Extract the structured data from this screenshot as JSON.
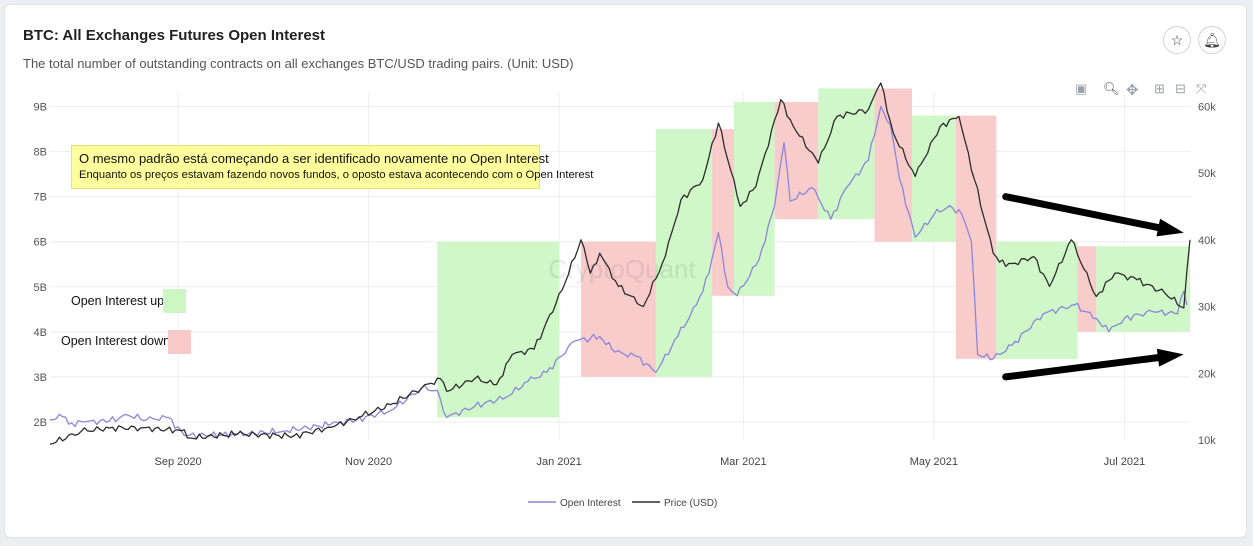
{
  "header": {
    "title": "BTC: All Exchanges Futures Open Interest",
    "subtitle": "The total number of outstanding contracts on all exchanges BTC/USD trading pairs. (Unit: USD)"
  },
  "icons": {
    "star": "star-icon",
    "bell": "bell-icon",
    "camera": "camera-icon",
    "zoom": "zoom-icon",
    "pan": "pan-icon",
    "plus": "plus-icon",
    "minus": "minus-icon",
    "reset": "reset-icon"
  },
  "annotation": {
    "line1": "O mesmo padrão está começando a ser identificado novamente no Open Interest",
    "line2": "Enquanto os preços estavam fazendo novos fundos, o oposto estava acontecendo com o Open Interest"
  },
  "key": {
    "up_label": "Open Interest up",
    "down_label": "Open Interest down",
    "up_color": "#ccf7c4",
    "down_color": "#f9c9c9"
  },
  "watermark": "CryptoQuant",
  "chart_data": {
    "type": "line",
    "x_start": "2020-07-22",
    "x_end": "2021-07-22",
    "xticks": [
      {
        "label": "Sep 2020",
        "date": "2020-09-01"
      },
      {
        "label": "Nov 2020",
        "date": "2020-11-01"
      },
      {
        "label": "Jan 2021",
        "date": "2021-01-01"
      },
      {
        "label": "Mar 2021",
        "date": "2021-03-01"
      },
      {
        "label": "May 2021",
        "date": "2021-05-01"
      },
      {
        "label": "Jul 2021",
        "date": "2021-07-01"
      }
    ],
    "y_left": {
      "ticks": [
        "2B",
        "3B",
        "4B",
        "5B",
        "6B",
        "7B",
        "8B",
        "9B"
      ],
      "values": [
        2,
        3,
        4,
        5,
        6,
        7,
        8,
        9
      ],
      "range": [
        1.6,
        9.3
      ]
    },
    "y_right": {
      "ticks": [
        "10k",
        "20k",
        "30k",
        "40k",
        "50k",
        "60k"
      ],
      "values": [
        10,
        20,
        30,
        40,
        50,
        60
      ],
      "range": [
        10,
        62
      ]
    },
    "legend": [
      {
        "name": "Open Interest",
        "color": "#8b86d9"
      },
      {
        "name": "Price (USD)",
        "color": "#2d2d2d"
      }
    ],
    "series": [
      {
        "name": "Open Interest",
        "color": "#8b86d9",
        "points": [
          [
            "2020-07-22",
            2.05
          ],
          [
            "2020-07-26",
            2.12
          ],
          [
            "2020-07-28",
            1.95
          ],
          [
            "2020-08-02",
            2.0
          ],
          [
            "2020-08-10",
            2.02
          ],
          [
            "2020-08-16",
            2.15
          ],
          [
            "2020-08-22",
            2.05
          ],
          [
            "2020-08-29",
            2.1
          ],
          [
            "2020-09-03",
            1.7
          ],
          [
            "2020-09-20",
            1.72
          ],
          [
            "2020-10-05",
            1.8
          ],
          [
            "2020-10-20",
            1.95
          ],
          [
            "2020-10-28",
            2.05
          ],
          [
            "2020-11-08",
            2.25
          ],
          [
            "2020-11-18",
            2.75
          ],
          [
            "2020-11-23",
            2.7
          ],
          [
            "2020-11-26",
            2.1
          ],
          [
            "2020-12-05",
            2.35
          ],
          [
            "2020-12-15",
            2.55
          ],
          [
            "2020-12-22",
            2.9
          ],
          [
            "2020-12-28",
            3.1
          ],
          [
            "2021-01-06",
            3.8
          ],
          [
            "2021-01-11",
            3.85
          ],
          [
            "2021-01-14",
            3.9
          ],
          [
            "2021-01-19",
            3.55
          ],
          [
            "2021-01-26",
            3.45
          ],
          [
            "2021-02-01",
            3.1
          ],
          [
            "2021-02-08",
            3.9
          ],
          [
            "2021-02-14",
            4.6
          ],
          [
            "2021-02-18",
            5.3
          ],
          [
            "2021-02-21",
            6.2
          ],
          [
            "2021-02-24",
            5.0
          ],
          [
            "2021-02-27",
            4.8
          ],
          [
            "2021-03-06",
            5.6
          ],
          [
            "2021-03-11",
            6.8
          ],
          [
            "2021-03-14",
            8.2
          ],
          [
            "2021-03-16",
            6.9
          ],
          [
            "2021-03-23",
            7.2
          ],
          [
            "2021-03-29",
            6.5
          ],
          [
            "2021-04-03",
            7.2
          ],
          [
            "2021-04-10",
            7.8
          ],
          [
            "2021-04-14",
            9.0
          ],
          [
            "2021-04-17",
            8.6
          ],
          [
            "2021-04-20",
            7.4
          ],
          [
            "2021-04-25",
            6.1
          ],
          [
            "2021-05-01",
            6.6
          ],
          [
            "2021-05-06",
            6.8
          ],
          [
            "2021-05-10",
            6.6
          ],
          [
            "2021-05-13",
            6.0
          ],
          [
            "2021-05-15",
            3.5
          ],
          [
            "2021-05-20",
            3.4
          ],
          [
            "2021-05-26",
            3.7
          ],
          [
            "2021-06-05",
            4.4
          ],
          [
            "2021-06-15",
            4.6
          ],
          [
            "2021-06-22",
            4.3
          ],
          [
            "2021-06-26",
            4.0
          ],
          [
            "2021-07-01",
            4.3
          ],
          [
            "2021-07-10",
            4.45
          ],
          [
            "2021-07-18",
            4.4
          ],
          [
            "2021-07-20",
            4.9
          ],
          [
            "2021-07-21",
            4.6
          ]
        ]
      },
      {
        "name": "Price (USD)",
        "color": "#2d2d2d",
        "points": [
          [
            "2020-07-22",
            9.4
          ],
          [
            "2020-08-01",
            11.3
          ],
          [
            "2020-08-10",
            11.8
          ],
          [
            "2020-08-20",
            11.8
          ],
          [
            "2020-09-02",
            11.4
          ],
          [
            "2020-09-05",
            10.3
          ],
          [
            "2020-09-20",
            10.9
          ],
          [
            "2020-10-08",
            10.6
          ],
          [
            "2020-10-20",
            11.9
          ],
          [
            "2020-10-30",
            13.6
          ],
          [
            "2020-11-08",
            15.3
          ],
          [
            "2020-11-18",
            17.8
          ],
          [
            "2020-11-24",
            19.2
          ],
          [
            "2020-11-26",
            17.3
          ],
          [
            "2020-12-05",
            19.2
          ],
          [
            "2020-12-12",
            18.3
          ],
          [
            "2020-12-17",
            22.8
          ],
          [
            "2020-12-24",
            23.6
          ],
          [
            "2021-01-02",
            32.5
          ],
          [
            "2021-01-08",
            40.0
          ],
          [
            "2021-01-11",
            35.0
          ],
          [
            "2021-01-14",
            38.0
          ],
          [
            "2021-01-20",
            33.0
          ],
          [
            "2021-01-28",
            30.0
          ],
          [
            "2021-02-04",
            37.5
          ],
          [
            "2021-02-09",
            46.0
          ],
          [
            "2021-02-16",
            49.0
          ],
          [
            "2021-02-21",
            57.5
          ],
          [
            "2021-02-28",
            45.0
          ],
          [
            "2021-03-05",
            48.0
          ],
          [
            "2021-03-13",
            61.0
          ],
          [
            "2021-03-17",
            57.0
          ],
          [
            "2021-03-25",
            51.5
          ],
          [
            "2021-03-31",
            58.5
          ],
          [
            "2021-04-10",
            59.5
          ],
          [
            "2021-04-14",
            63.5
          ],
          [
            "2021-04-18",
            56.0
          ],
          [
            "2021-04-25",
            49.5
          ],
          [
            "2021-05-03",
            57.0
          ],
          [
            "2021-05-09",
            58.5
          ],
          [
            "2021-05-14",
            49.0
          ],
          [
            "2021-05-20",
            38.0
          ],
          [
            "2021-05-24",
            36.0
          ],
          [
            "2021-06-02",
            37.5
          ],
          [
            "2021-06-07",
            33.0
          ],
          [
            "2021-06-14",
            40.0
          ],
          [
            "2021-06-22",
            31.5
          ],
          [
            "2021-06-28",
            35.0
          ],
          [
            "2021-07-05",
            34.0
          ],
          [
            "2021-07-14",
            32.0
          ],
          [
            "2021-07-20",
            29.8
          ],
          [
            "2021-07-22",
            40.0
          ]
        ]
      }
    ],
    "zones": [
      {
        "type": "up",
        "x0": "2020-11-23",
        "x1": "2021-01-01",
        "y0": 2.1,
        "y1": 6.0
      },
      {
        "type": "down",
        "x0": "2021-01-08",
        "x1": "2021-02-01",
        "y0": 3.0,
        "y1": 6.0
      },
      {
        "type": "up",
        "x0": "2021-02-01",
        "x1": "2021-02-19",
        "y0": 3.0,
        "y1": 8.5
      },
      {
        "type": "down",
        "x0": "2021-02-19",
        "x1": "2021-02-26",
        "y0": 4.8,
        "y1": 8.5
      },
      {
        "type": "up",
        "x0": "2021-02-26",
        "x1": "2021-03-11",
        "y0": 4.8,
        "y1": 9.1
      },
      {
        "type": "down",
        "x0": "2021-03-11",
        "x1": "2021-03-25",
        "y0": 6.5,
        "y1": 9.1
      },
      {
        "type": "up",
        "x0": "2021-03-25",
        "x1": "2021-04-12",
        "y0": 6.5,
        "y1": 9.4
      },
      {
        "type": "down",
        "x0": "2021-04-12",
        "x1": "2021-04-24",
        "y0": 6.0,
        "y1": 9.4
      },
      {
        "type": "up",
        "x0": "2021-04-24",
        "x1": "2021-05-08",
        "y0": 6.0,
        "y1": 8.8
      },
      {
        "type": "down",
        "x0": "2021-05-08",
        "x1": "2021-05-21",
        "y0": 3.4,
        "y1": 8.8
      },
      {
        "type": "up",
        "x0": "2021-05-21",
        "x1": "2021-06-16",
        "y0": 3.4,
        "y1": 6.0
      },
      {
        "type": "down",
        "x0": "2021-06-16",
        "x1": "2021-06-22",
        "y0": 4.0,
        "y1": 5.9
      },
      {
        "type": "up",
        "x0": "2021-06-22",
        "x1": "2021-07-22",
        "y0": 4.0,
        "y1": 5.9
      }
    ],
    "arrows": [
      {
        "from": [
          "2021-05-24",
          7.0
        ],
        "to": [
          "2021-07-20",
          6.2
        ]
      },
      {
        "from": [
          "2021-05-24",
          3.0
        ],
        "to": [
          "2021-07-20",
          3.5
        ]
      }
    ]
  }
}
